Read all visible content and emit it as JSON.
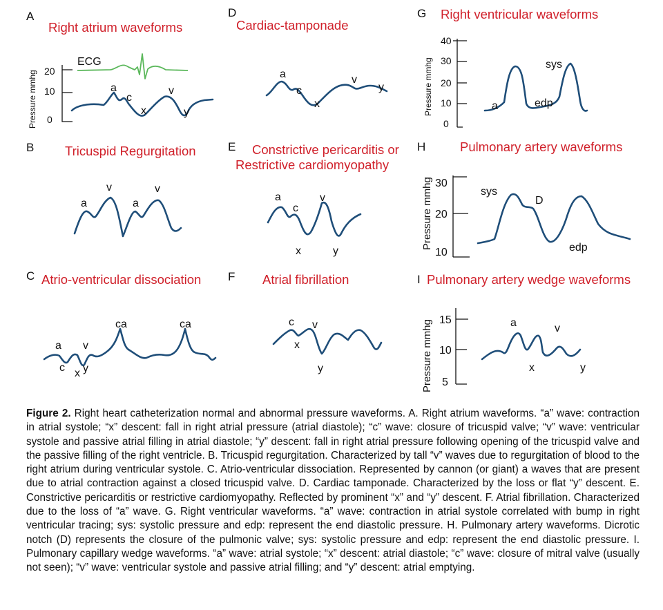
{
  "panels": {
    "A": {
      "letter": "A",
      "title": "Right atrium waveforms",
      "ecg_label": "ECG",
      "y_axis_title": "Pressure mmhg",
      "ticks": [
        "20",
        "10",
        "0"
      ],
      "labels": {
        "a": "a",
        "c": "c",
        "x": "x",
        "v": "v",
        "y": "y"
      }
    },
    "B": {
      "letter": "B",
      "title": "Tricuspid Regurgitation",
      "labels": {
        "a1": "a",
        "v1": "v",
        "a2": "a",
        "v2": "v"
      }
    },
    "C": {
      "letter": "C",
      "title": "Atrio-ventricular dissociation",
      "labels": {
        "a": "a",
        "v": "v",
        "c": "c",
        "x": "x",
        "y": "y",
        "ca1": "ca",
        "ca2": "ca"
      }
    },
    "D": {
      "letter": "D",
      "title": "Cardiac-tamponade",
      "labels": {
        "a": "a",
        "c": "c",
        "x": "x",
        "v": "v",
        "y": "y"
      }
    },
    "E": {
      "letter": "E",
      "title_line1": "Constrictive pericarditis or",
      "title_line2": "Restrictive cardiomyopathy",
      "labels": {
        "a": "a",
        "c": "c",
        "v": "v",
        "x": "x",
        "y": "y"
      }
    },
    "F": {
      "letter": "F",
      "title": "Atrial fibrillation",
      "labels": {
        "c": "c",
        "v": "v",
        "x": "x",
        "y": "y"
      }
    },
    "G": {
      "letter": "G",
      "title": "Right ventricular waveforms",
      "y_axis_title": "Pressure mmhg",
      "ticks": [
        "40",
        "30",
        "20",
        "10",
        "0"
      ],
      "labels": {
        "a": "a",
        "edp": "edp",
        "sys": "sys"
      }
    },
    "H": {
      "letter": "H",
      "title": "Pulmonary artery waveforms",
      "y_axis_title": "Pressure mmhg",
      "ticks": [
        "30",
        "20",
        "10"
      ],
      "labels": {
        "sys": "sys",
        "D": "D",
        "edp": "edp"
      }
    },
    "I": {
      "letter": "I",
      "title": "Pulmonary artery wedge waveforms",
      "y_axis_title": "Pressure mmhg",
      "ticks": [
        "15",
        "10",
        "5"
      ],
      "labels": {
        "a": "a",
        "v": "v",
        "x": "x",
        "y": "y"
      }
    }
  },
  "caption": {
    "heading": "Figure 2.",
    "text": "Right heart catheterization normal and abnormal pressure waveforms. A. Right atrium waveforms. “a” wave: contraction in atrial systole; “x” descent: fall in right atrial pressure (atrial diastole); “c” wave: closure of tricuspid valve; “v” wave: ventricular systole and passive atrial filling in atrial diastole; “y” descent: fall in right atrial pressure following opening of the tricuspid valve and the passive filling of the right ventricle. B. Tricuspid regurgitation. Characterized by tall “v” waves due to regurgitation of blood to the right atrium during ventricular systole. C. Atrio-ventricular dissociation. Represented by cannon (or giant) a waves that are present due to atrial contraction against a closed tricuspid valve. D. Cardiac tamponade. Characterized by the loss or flat “y” descent. E. Constrictive pericarditis or restrictive cardiomyopathy. Reflected by prominent “x” and “y” descent. F. Atrial fibrillation. Characterized due to the loss of “a” wave. G. Right ventricular waveforms. “a” wave: contraction in atrial systole correlated with bump in right ventricular tracing; sys: systolic pressure and edp: represent the end diastolic pressure. H. Pulmonary artery waveforms. Dicrotic notch (D) represents the closure of the pulmonic valve; sys: systolic pressure and edp: represent the end diastolic pressure. I. Pulmonary capillary wedge waveforms. “a” wave: atrial systole; “x” descent: atrial diastole; “c” wave: closure of mitral valve (usually not seen); “v” wave: ventricular systole and passive atrial filling; and “y” descent: atrial emptying."
  }
}
